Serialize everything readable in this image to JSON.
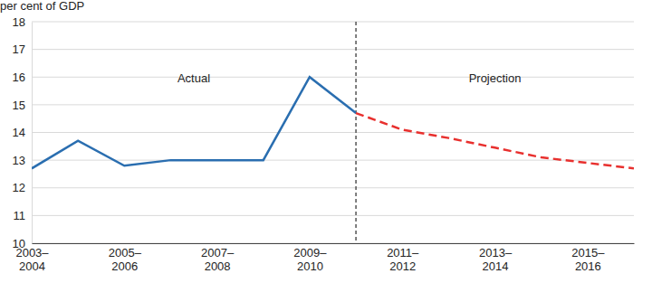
{
  "chart_data": {
    "type": "line",
    "y_label": "per cent of GDP",
    "categories": [
      "2003–2004",
      null,
      "2005–2006",
      null,
      "2007–2008",
      null,
      "2009–2010",
      null,
      "2011–2012",
      null,
      "2013–2014",
      null,
      "2015–2016",
      null
    ],
    "series": [
      {
        "color": "#2a6eb0",
        "line_style": "solid",
        "values": [
          12.7,
          13.7,
          12.8,
          13.0,
          13.0,
          13.0,
          16.0,
          14.7,
          null,
          null,
          null,
          null,
          null,
          null
        ]
      },
      {
        "color": "#e8302e",
        "line_style": "dashed",
        "values": [
          null,
          null,
          null,
          null,
          null,
          null,
          null,
          14.7,
          14.1,
          13.8,
          13.45,
          13.1,
          12.9,
          12.7
        ]
      }
    ],
    "annotations": [
      {
        "text": "Actual"
      },
      {
        "text": "Projection"
      }
    ],
    "ylim": [
      10,
      18
    ],
    "yticks": [
      10,
      11,
      12,
      13,
      14,
      15,
      16,
      17,
      18
    ],
    "grid": true
  }
}
